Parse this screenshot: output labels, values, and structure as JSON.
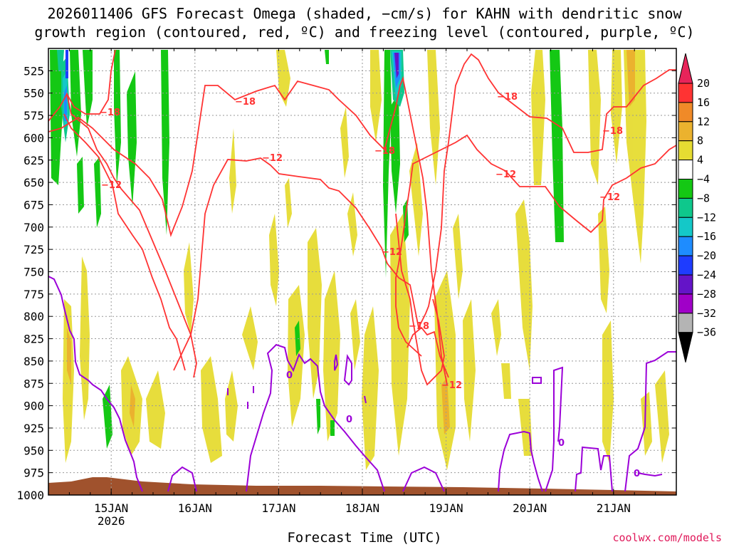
{
  "title_line1": "2026011406 GFS Forecast Omega (shaded, −cm/s) for KAHN with dendritic snow",
  "title_line2": "growth region (contoured, red, ºC) and freezing level (contoured, purple, ºC)",
  "xaxis_title": "Forecast Time (UTC)",
  "credit": "coolwx.com/models",
  "chart_data": {
    "type": "heatmap",
    "title": "2026011406 GFS Forecast Omega (shaded, −cm/s) for KAHN with dendritic snow growth region (contoured, red, ºC) and freezing level (contoured, purple, ºC)",
    "xlabel": "Forecast Time (UTC)",
    "ylabel": "",
    "y_scale": "pressure (hPa), inverted",
    "y_ticks": [
      "525",
      "550",
      "575",
      "600",
      "625",
      "650",
      "675",
      "700",
      "725",
      "750",
      "775",
      "800",
      "825",
      "850",
      "875",
      "900",
      "925",
      "950",
      "975",
      "1000"
    ],
    "ylim": [
      500,
      1000
    ],
    "x_ticks": [
      {
        "label": "15JAN",
        "sub": "2026",
        "hour": 18
      },
      {
        "label": "16JAN",
        "sub": "",
        "hour": 42
      },
      {
        "label": "17JAN",
        "sub": "",
        "hour": 66
      },
      {
        "label": "18JAN",
        "sub": "",
        "hour": 90
      },
      {
        "label": "19JAN",
        "sub": "",
        "hour": 114
      },
      {
        "label": "20JAN",
        "sub": "",
        "hour": 138
      },
      {
        "label": "21JAN",
        "sub": "",
        "hour": 162
      }
    ],
    "xlim_hours": [
      0,
      180
    ],
    "grid": true,
    "colorbar": {
      "levels": [
        "20",
        "16",
        "12",
        "8",
        "4",
        "−4",
        "−8",
        "−12",
        "−16",
        "−20",
        "−24",
        "−28",
        "−32",
        "−36"
      ],
      "colors": [
        "#e8245a",
        "#ff3333",
        "#f08a28",
        "#ebb22e",
        "#e6dc32",
        "#ffffff",
        "#14c814",
        "#0ec88c",
        "#14c8c8",
        "#1e8cff",
        "#1e3cff",
        "#6414c8",
        "#a000c8",
        "#b4b4b4",
        "#000000"
      ]
    },
    "contours_red_labels": [
      "−18",
      "−18",
      "−18",
      "−18",
      "−18",
      "−18",
      "−12",
      "−12",
      "−12",
      "−12",
      "−12",
      "−12"
    ],
    "contours_purple_labels": [
      "0",
      "0",
      "0",
      "0"
    ],
    "freezing_level_note": "0 °C contour"
  }
}
